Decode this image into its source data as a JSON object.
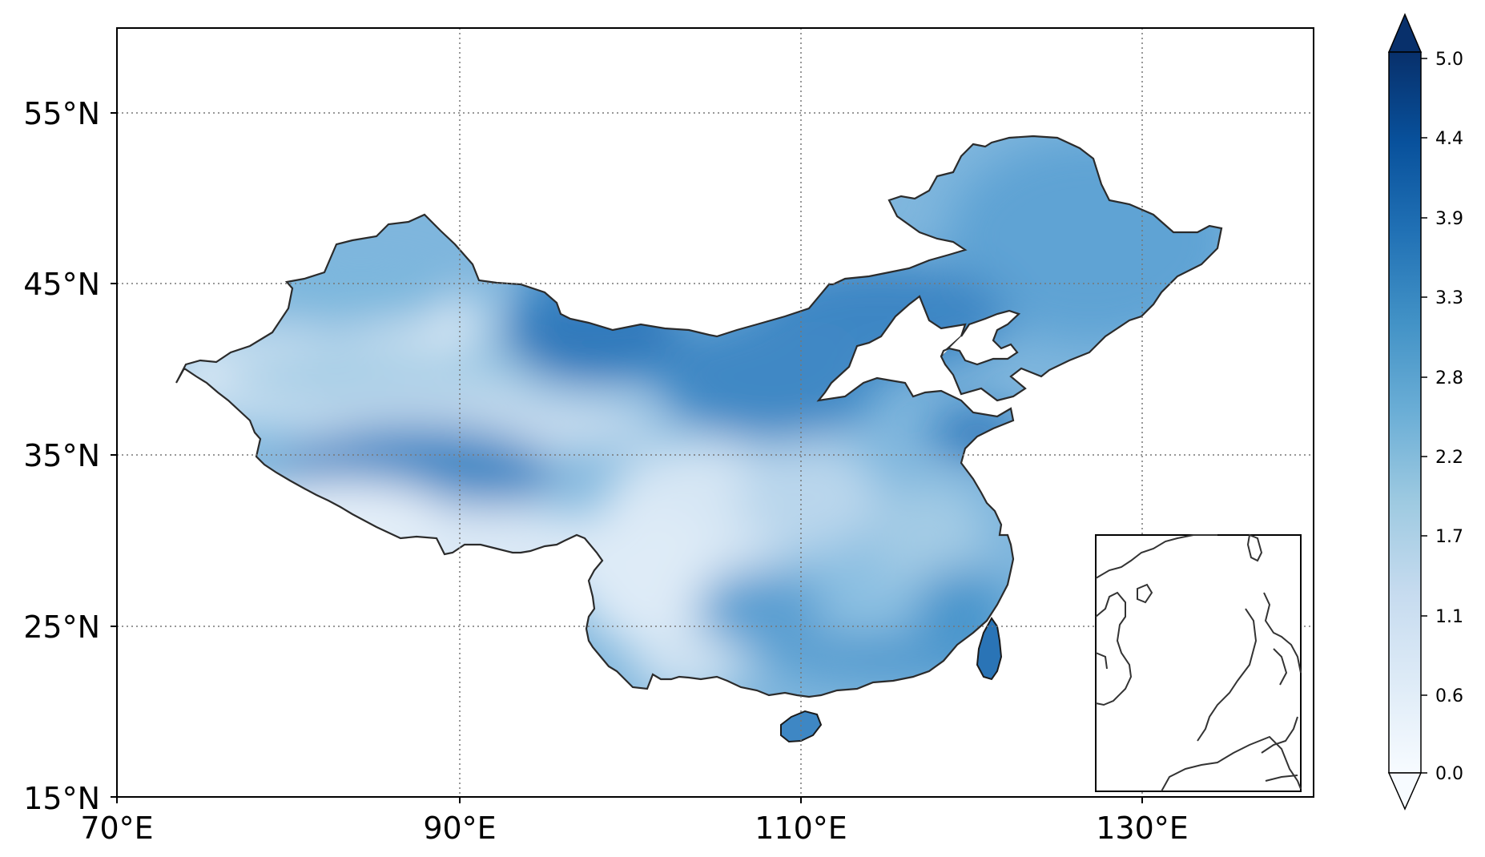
{
  "map": {
    "lon_ticks": [
      "70°E",
      "90°E",
      "110°E",
      "130°E"
    ],
    "lat_ticks": [
      "55°N",
      "45°N",
      "35°N",
      "25°N",
      "15°N"
    ],
    "extent": {
      "lon": [
        70,
        140
      ],
      "lat": [
        15,
        60
      ]
    },
    "gridlines": "dotted",
    "inset": "South China Sea islands"
  },
  "colorbar": {
    "ticks": [
      "5.0",
      "4.4",
      "3.9",
      "3.3",
      "2.8",
      "2.2",
      "1.7",
      "1.1",
      "0.6",
      "0.0"
    ],
    "colormap": "Blues",
    "extend": "both",
    "low_color": "#f7fbff",
    "high_color": "#08306b"
  }
}
